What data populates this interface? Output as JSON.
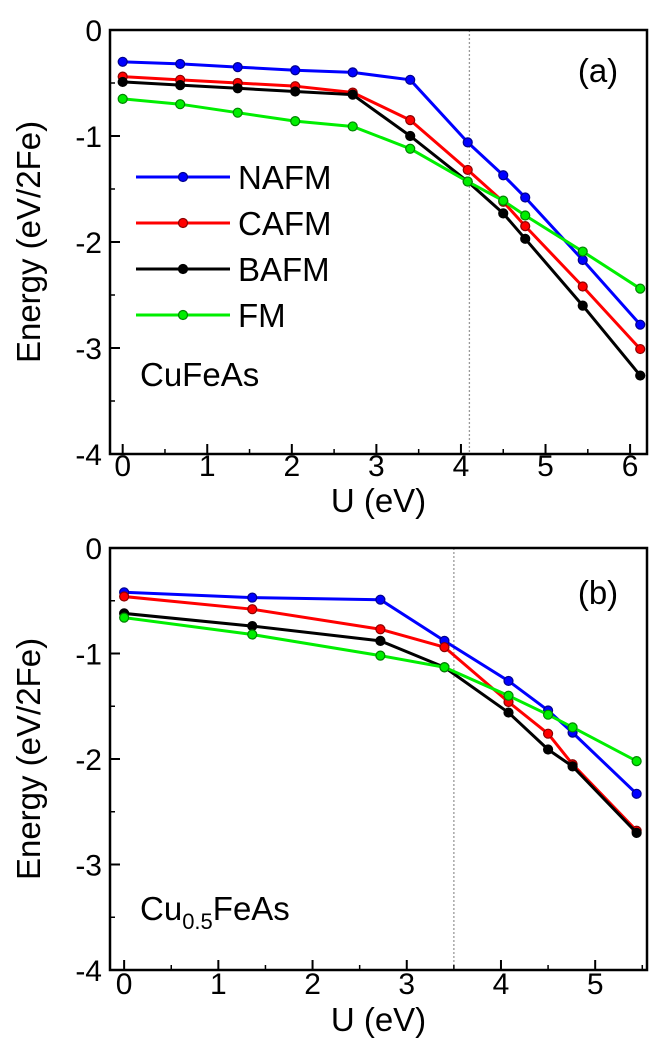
{
  "chart_data": [
    {
      "type": "line",
      "panel_label": "(a)",
      "compound": {
        "base": "CuFeAs",
        "sub": "",
        "tail": ""
      },
      "xlabel": "U (eV)",
      "ylabel": "Energy (eV/2Fe)",
      "xlim": [
        -0.15,
        6.2
      ],
      "ylim": [
        -4,
        0
      ],
      "xticks": [
        0,
        1,
        2,
        3,
        4,
        5,
        6
      ],
      "yticks": [
        0,
        -1,
        -2,
        -3,
        -4
      ],
      "ytick_labels": [
        "0",
        "-1",
        "-2",
        "-3",
        "-4"
      ],
      "vline": 4.1,
      "grid": false,
      "legend_position": "center-left",
      "x": [
        0,
        0.68,
        1.36,
        2.04,
        2.72,
        3.4,
        4.08,
        4.5,
        4.76,
        5.44,
        6.12
      ],
      "series": [
        {
          "name": "NAFM",
          "color": "#0000ff",
          "values": [
            -0.3,
            -0.32,
            -0.35,
            -0.38,
            -0.4,
            -0.47,
            -1.06,
            -1.37,
            -1.58,
            -2.17,
            -2.78
          ]
        },
        {
          "name": "CAFM",
          "color": "#ff0000",
          "values": [
            -0.44,
            -0.47,
            -0.5,
            -0.53,
            -0.59,
            -0.85,
            -1.32,
            -1.62,
            -1.85,
            -2.42,
            -3.01
          ]
        },
        {
          "name": "BAFM",
          "color": "#000000",
          "values": [
            -0.49,
            -0.52,
            -0.55,
            -0.58,
            -0.61,
            -1.0,
            -1.43,
            -1.73,
            -1.97,
            -2.6,
            -3.26
          ]
        },
        {
          "name": "FM",
          "color": "#00ee00",
          "values": [
            -0.65,
            -0.7,
            -0.78,
            -0.86,
            -0.91,
            -1.12,
            -1.43,
            -1.61,
            -1.75,
            -2.09,
            -2.44
          ]
        }
      ]
    },
    {
      "type": "line",
      "panel_label": "(b)",
      "compound": {
        "base": "Cu",
        "sub": "0.5",
        "tail": "FeAs"
      },
      "xlabel": "U (eV)",
      "ylabel": "Energy (eV/2Fe)",
      "xlim": [
        -0.15,
        5.55
      ],
      "ylim": [
        -4,
        0
      ],
      "xticks": [
        0,
        1,
        2,
        3,
        4,
        5
      ],
      "yticks": [
        0,
        -1,
        -2,
        -3,
        -4
      ],
      "ytick_labels": [
        "0",
        "-1",
        "-2",
        "-3",
        "-4"
      ],
      "vline": 3.5,
      "grid": false,
      "x": [
        0,
        1.36,
        2.72,
        3.4,
        4.08,
        4.5,
        4.76,
        5.44
      ],
      "series": [
        {
          "name": "NAFM",
          "color": "#0000ff",
          "values": [
            -0.42,
            -0.47,
            -0.49,
            -0.88,
            -1.26,
            -1.54,
            -1.75,
            -2.33
          ]
        },
        {
          "name": "CAFM",
          "color": "#ff0000",
          "values": [
            -0.46,
            -0.58,
            -0.77,
            -0.94,
            -1.46,
            -1.76,
            -2.05,
            -2.68
          ]
        },
        {
          "name": "BAFM",
          "color": "#000000",
          "values": [
            -0.62,
            -0.74,
            -0.88,
            -1.13,
            -1.56,
            -1.91,
            -2.07,
            -2.7
          ]
        },
        {
          "name": "FM",
          "color": "#00ee00",
          "values": [
            -0.66,
            -0.82,
            -1.02,
            -1.13,
            -1.4,
            -1.58,
            -1.7,
            -2.02
          ]
        }
      ]
    }
  ]
}
